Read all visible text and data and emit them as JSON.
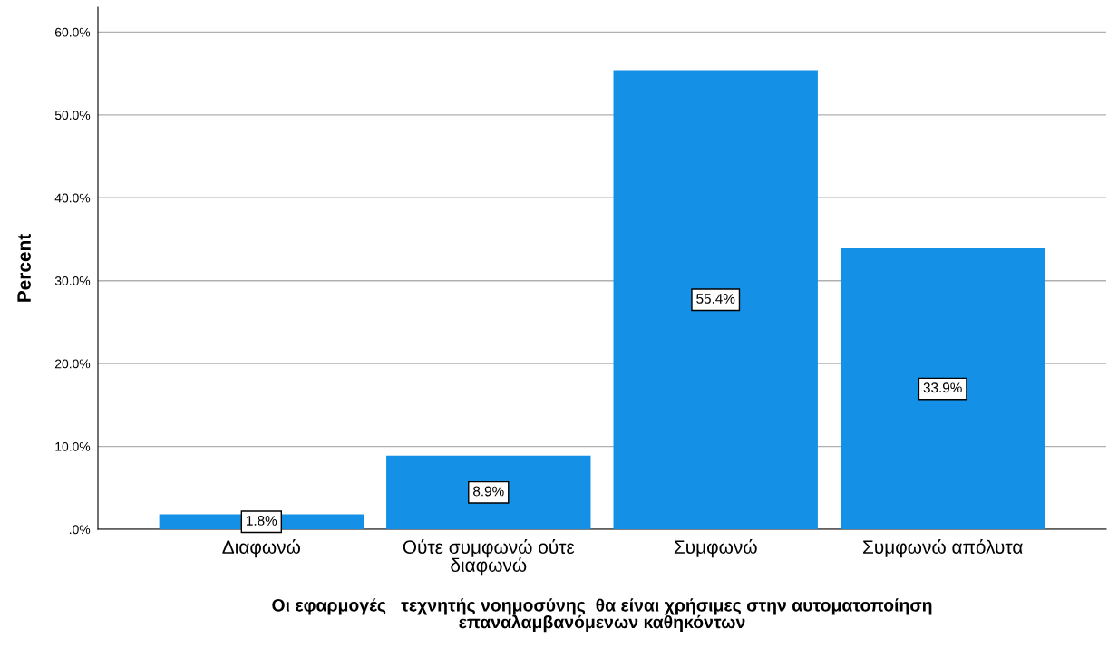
{
  "chart_data": {
    "type": "bar",
    "categories": [
      "Διαφωνώ",
      "Ούτε συμφωνώ ούτε\nδιαφωνώ",
      "Συμφωνώ",
      "Συμφωνώ απόλυτα"
    ],
    "values": [
      1.8,
      8.9,
      55.4,
      33.9
    ],
    "value_labels": [
      "1.8%",
      "8.9%",
      "55.4%",
      "33.9%"
    ],
    "color": "#1490e6",
    "xlabel": "Οι εφαρμογές   τεχνητής νοημοσύνης  θα είναι χρήσιμες στην αυτοματοποίηση\nεπαναλαμβανόμενων καθηκόντων",
    "ylabel": "Percent",
    "ylim": [
      0,
      63
    ],
    "yticks": [
      {
        "value": 0,
        "label": ".0%"
      },
      {
        "value": 10,
        "label": "10.0%"
      },
      {
        "value": 20,
        "label": "20.0%"
      },
      {
        "value": 30,
        "label": "30.0%"
      },
      {
        "value": 40,
        "label": "40.0%"
      },
      {
        "value": 50,
        "label": "50.0%"
      },
      {
        "value": 60,
        "label": "60.0%"
      }
    ],
    "grid": "y"
  }
}
